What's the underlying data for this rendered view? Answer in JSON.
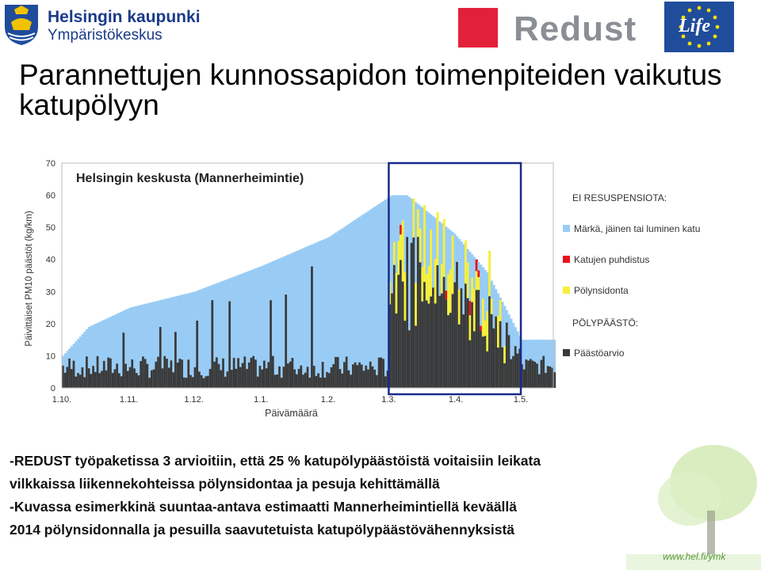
{
  "header": {
    "org_line1": "Helsingin kaupunki",
    "org_line2": "Ympäristökeskus",
    "project_logo": "Redust",
    "eu_logo": "Life"
  },
  "title": "Parannettujen kunnossapidon toimenpiteiden vaikutus katupölyyn",
  "chart_data": {
    "type": "bar",
    "stacked": true,
    "chart_title": "Helsingin keskusta (Mannerheimintie)",
    "ylabel": "Päivittäiset PM10 päästöt (kg/km)",
    "xlabel": "Päivämäärä",
    "ylim": [
      0,
      70
    ],
    "yticks": [
      0,
      10,
      20,
      30,
      40,
      50,
      60,
      70
    ],
    "xticks": [
      "1.10.",
      "1.11.",
      "1.12.",
      "1.1.",
      "1.2.",
      "1.3.",
      "1.4.",
      "1.5."
    ],
    "x_range_days": [
      0,
      227
    ],
    "highlight_box_days": [
      151,
      212
    ],
    "grid": false,
    "legend_position": "right",
    "legend": {
      "section1": "EI RESUSPENSIOTA:",
      "items1": [
        {
          "label": "Märkä, jäinen tai luminen katu",
          "color": "#99ccf5"
        },
        {
          "label": "Katujen puhdistus",
          "color": "#e8101a"
        },
        {
          "label": "Pölynsidonta",
          "color": "#f7f03a"
        }
      ],
      "section2": "PÖLYPÄÄSTÖ:",
      "items2": [
        {
          "label": "Päästöarvio",
          "color": "#3a3a3a"
        }
      ]
    },
    "series": [
      {
        "name": "Märkä, jäinen tai luminen katu",
        "color": "#99ccf5",
        "envelope_days": [
          0,
          12,
          31,
          61,
          92,
          123,
          152,
          159,
          181,
          196,
          212,
          227
        ],
        "envelope_values": [
          10,
          19,
          25,
          30,
          38,
          47,
          60,
          60,
          48,
          36,
          15,
          15
        ]
      },
      {
        "name": "Katujen puhdistus",
        "color": "#e8101a"
      },
      {
        "name": "Pölynsidonta",
        "color": "#f7f03a"
      },
      {
        "name": "Päästöarvio",
        "color": "#3a3a3a",
        "typical_range": [
          4,
          27
        ],
        "peak_value": 47
      }
    ]
  },
  "footer": {
    "line1": "-REDUST työpaketissa 3 arvioitiin, että 25 % katupölypäästöistä voitaisiin leikata",
    "line2": "vilkkaissa liikennekohteissa pölynsidontaa ja pesuja kehittämällä",
    "line3": "-Kuvassa esimerkkinä suuntaa-antava estimaatti Mannerheimintiellä keväällä",
    "line4": "2014 pölynsidonnalla ja pesuilla saavutetuista katupölypäästövähennyksistä"
  },
  "corner_url": "www.hel.fi/ymk"
}
